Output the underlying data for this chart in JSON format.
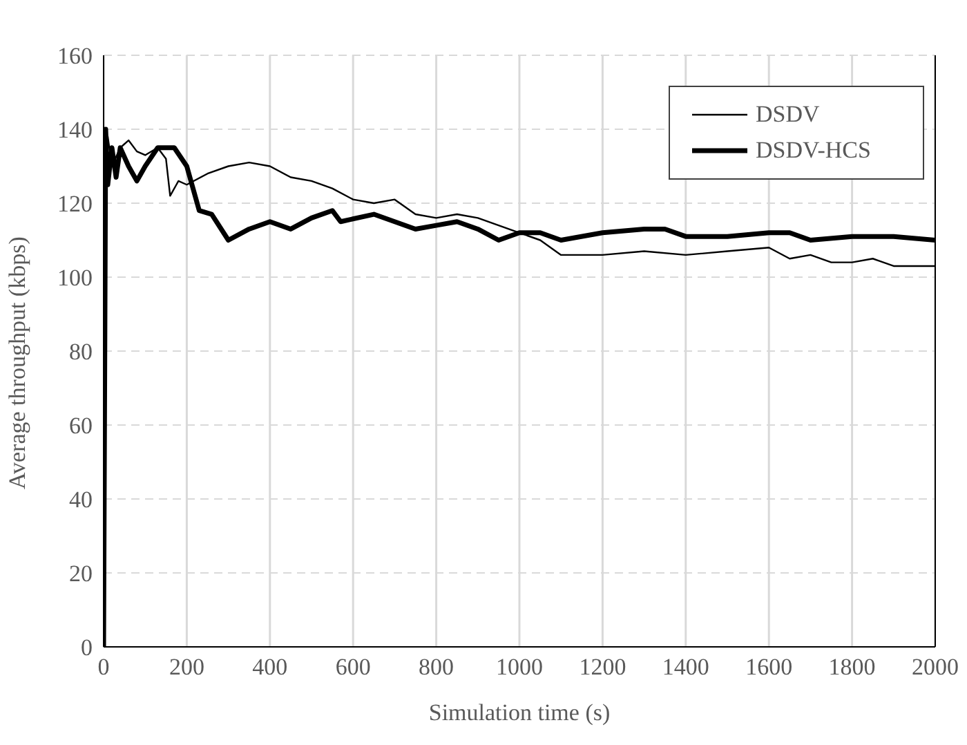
{
  "chart_data": {
    "type": "line",
    "xlabel": "Simulation time (s)",
    "ylabel": "Average throughput (kbps)",
    "xlim": [
      0,
      2000
    ],
    "xticks": [
      0,
      200,
      400,
      600,
      800,
      1000,
      1200,
      1400,
      1600,
      1800,
      2000
    ],
    "ylim": [
      0,
      160
    ],
    "yticks": [
      0,
      20,
      40,
      60,
      80,
      100,
      120,
      140,
      160
    ],
    "grid": true,
    "legend": "top right",
    "marker": "none",
    "series": [
      {
        "name": "DSDV",
        "color": "#000000",
        "x": [
          0,
          5,
          10,
          20,
          40,
          60,
          80,
          100,
          130,
          150,
          160,
          180,
          200,
          250,
          300,
          350,
          400,
          450,
          500,
          550,
          600,
          650,
          700,
          750,
          800,
          850,
          900,
          950,
          1000,
          1050,
          1100,
          1200,
          1300,
          1400,
          1500,
          1600,
          1650,
          1700,
          1750,
          1800,
          1850,
          1900,
          2000
        ],
        "values": [
          0,
          120,
          138,
          130,
          135,
          137,
          134,
          133,
          135,
          132,
          122,
          126,
          125,
          128,
          130,
          131,
          130,
          127,
          126,
          124,
          121,
          120,
          121,
          117,
          116,
          117,
          116,
          114,
          112,
          110,
          106,
          106,
          107,
          106,
          107,
          108,
          105,
          106,
          104,
          104,
          105,
          103,
          103
        ]
      },
      {
        "name": "DSDV-HCS",
        "color": "#000000",
        "x": [
          0,
          5,
          10,
          20,
          30,
          40,
          60,
          80,
          100,
          130,
          170,
          200,
          230,
          260,
          300,
          350,
          400,
          450,
          500,
          550,
          570,
          650,
          700,
          750,
          800,
          850,
          900,
          950,
          1000,
          1050,
          1100,
          1200,
          1300,
          1350,
          1400,
          1500,
          1600,
          1650,
          1700,
          1800,
          1900,
          2000
        ],
        "values": [
          0,
          140,
          125,
          135,
          127,
          135,
          130,
          126,
          130,
          135,
          135,
          130,
          118,
          117,
          110,
          113,
          115,
          113,
          116,
          118,
          115,
          117,
          115,
          113,
          114,
          115,
          113,
          110,
          112,
          112,
          110,
          112,
          113,
          113,
          111,
          111,
          112,
          112,
          110,
          111,
          111,
          110
        ]
      }
    ]
  }
}
